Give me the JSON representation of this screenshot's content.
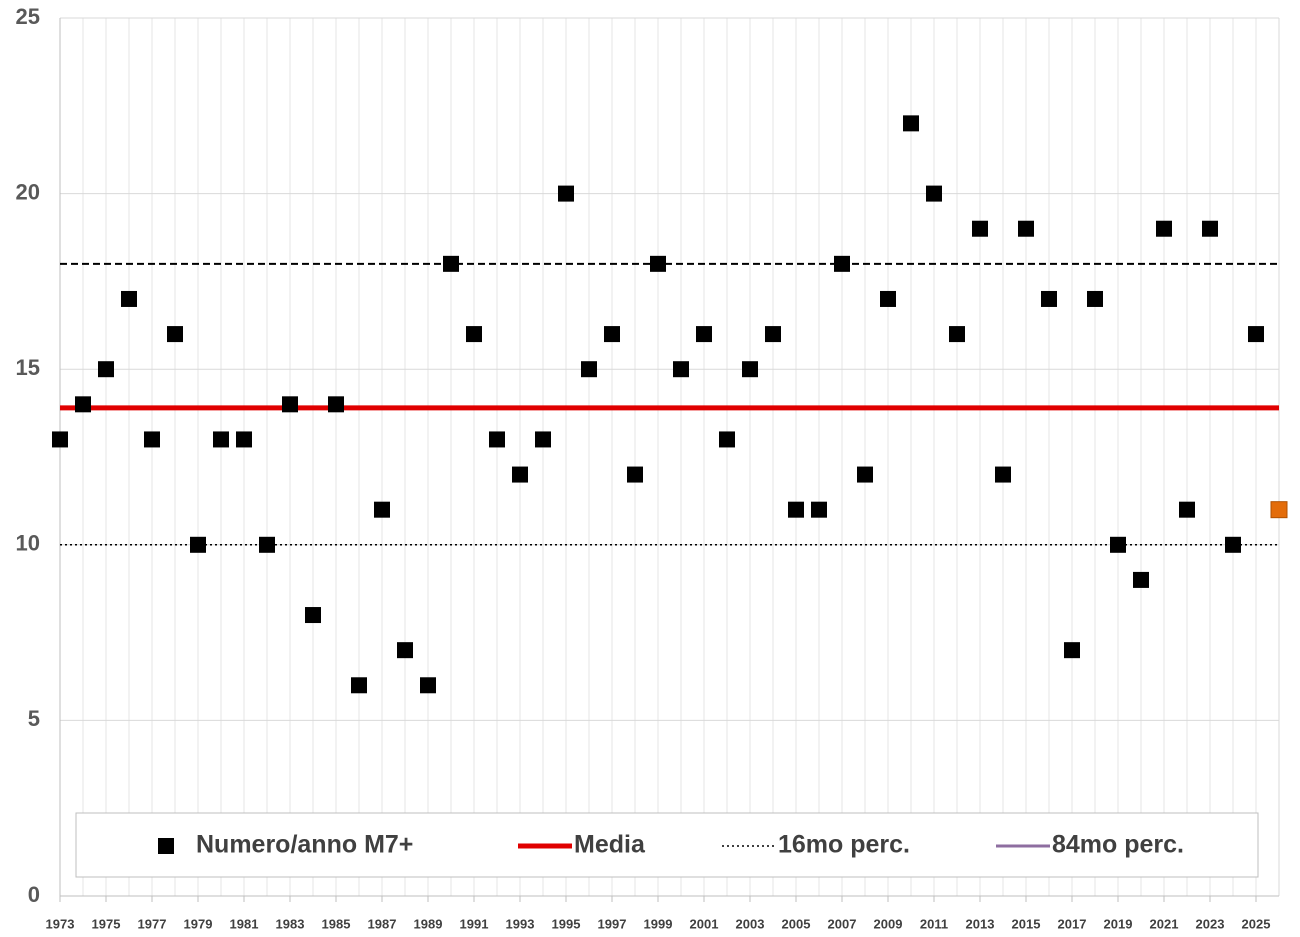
{
  "chart_data": {
    "type": "scatter",
    "xlim": [
      1973,
      2026
    ],
    "ylim": [
      0,
      25
    ],
    "xticks": [
      1973,
      1975,
      1977,
      1979,
      1981,
      1983,
      1985,
      1987,
      1989,
      1991,
      1993,
      1995,
      1997,
      1999,
      2001,
      2003,
      2005,
      2007,
      2009,
      2011,
      2013,
      2015,
      2017,
      2019,
      2021,
      2023,
      2025
    ],
    "yticks": [
      0,
      5,
      10,
      15,
      20,
      25
    ],
    "grid": true,
    "legend": "bottom",
    "series": [
      {
        "name": "Numero/anno M7+",
        "color": "#000000",
        "x": [
          1973,
          1974,
          1975,
          1976,
          1977,
          1978,
          1979,
          1980,
          1981,
          1982,
          1983,
          1984,
          1985,
          1986,
          1987,
          1988,
          1989,
          1990,
          1991,
          1992,
          1993,
          1994,
          1995,
          1996,
          1997,
          1998,
          1999,
          2000,
          2001,
          2002,
          2003,
          2004,
          2005,
          2006,
          2007,
          2008,
          2009,
          2010,
          2011,
          2012,
          2013,
          2014,
          2015,
          2016,
          2017,
          2018,
          2019,
          2020,
          2021,
          2022,
          2023,
          2024,
          2025
        ],
        "values": [
          13,
          14,
          15,
          17,
          13,
          16,
          10,
          13,
          13,
          10,
          14,
          8,
          14,
          6,
          11,
          7,
          6,
          18,
          16,
          13,
          12,
          13,
          20,
          15,
          16,
          12,
          18,
          15,
          16,
          13,
          15,
          16,
          11,
          11,
          18,
          12,
          17,
          22,
          20,
          16,
          19,
          12,
          19,
          17,
          7,
          17,
          10,
          9,
          19,
          11,
          19,
          10,
          16
        ]
      }
    ],
    "highlight_point": {
      "x": 2026,
      "value": 11,
      "color": "#e36c0a"
    },
    "lines": [
      {
        "name": "Media",
        "value": 13.9,
        "color": "#e00000",
        "width": 5,
        "dash": "none"
      },
      {
        "name": "16mo perc.",
        "value": 10,
        "color": "#000000",
        "width": 1.5,
        "dash": "2 3"
      },
      {
        "name": "84mo perc.",
        "value": 18,
        "color": "#000000",
        "width": 2,
        "dash": "7 4",
        "legend_color": "#8e6ea0",
        "legend_dash": "none"
      }
    ]
  }
}
